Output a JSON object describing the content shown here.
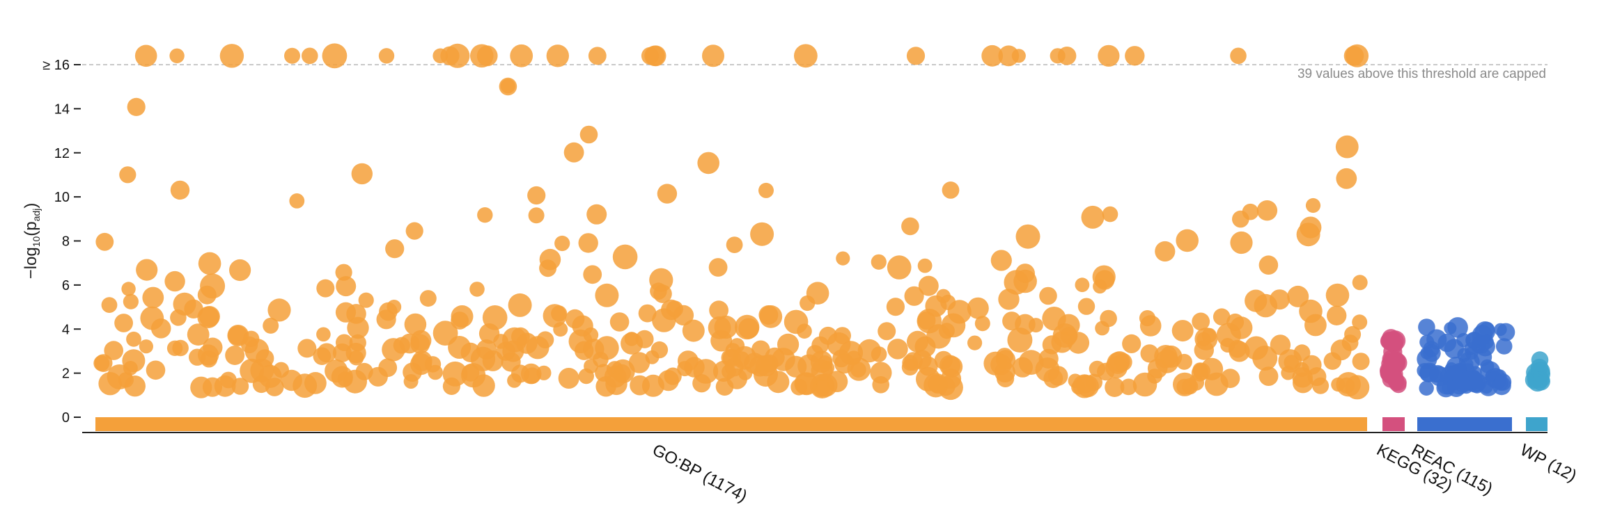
{
  "chart_data": {
    "type": "scatter",
    "subtype": "manhattan",
    "ylabel_main": "−log",
    "ylabel_sub": "10",
    "ylabel_paren_open": "(p",
    "ylabel_paren_sub": "adj",
    "ylabel_paren_close": ")",
    "y_ticks": [
      "0",
      "2",
      "4",
      "6",
      "8",
      "10",
      "12",
      "14",
      "≥ 16"
    ],
    "y_tick_values": [
      0,
      2,
      4,
      6,
      8,
      10,
      12,
      14,
      16
    ],
    "ylim": [
      0,
      17
    ],
    "cap_value": 16,
    "cap_note": "39 values above this threshold are capped",
    "grid": false,
    "sources": [
      {
        "label": "GO:BP (1174)",
        "color": "#f4a03a",
        "count": 1174,
        "points": 470,
        "seed": 11
      },
      {
        "label": "KEGG (32)",
        "color": "#d4507e",
        "count": 32,
        "points": 32,
        "seed": 23
      },
      {
        "label": "REAC (115)",
        "color": "#3a6fcf",
        "count": 115,
        "points": 80,
        "seed": 37
      },
      {
        "label": "WP (12)",
        "color": "#3ea4cc",
        "count": 12,
        "points": 12,
        "seed": 51
      }
    ]
  }
}
